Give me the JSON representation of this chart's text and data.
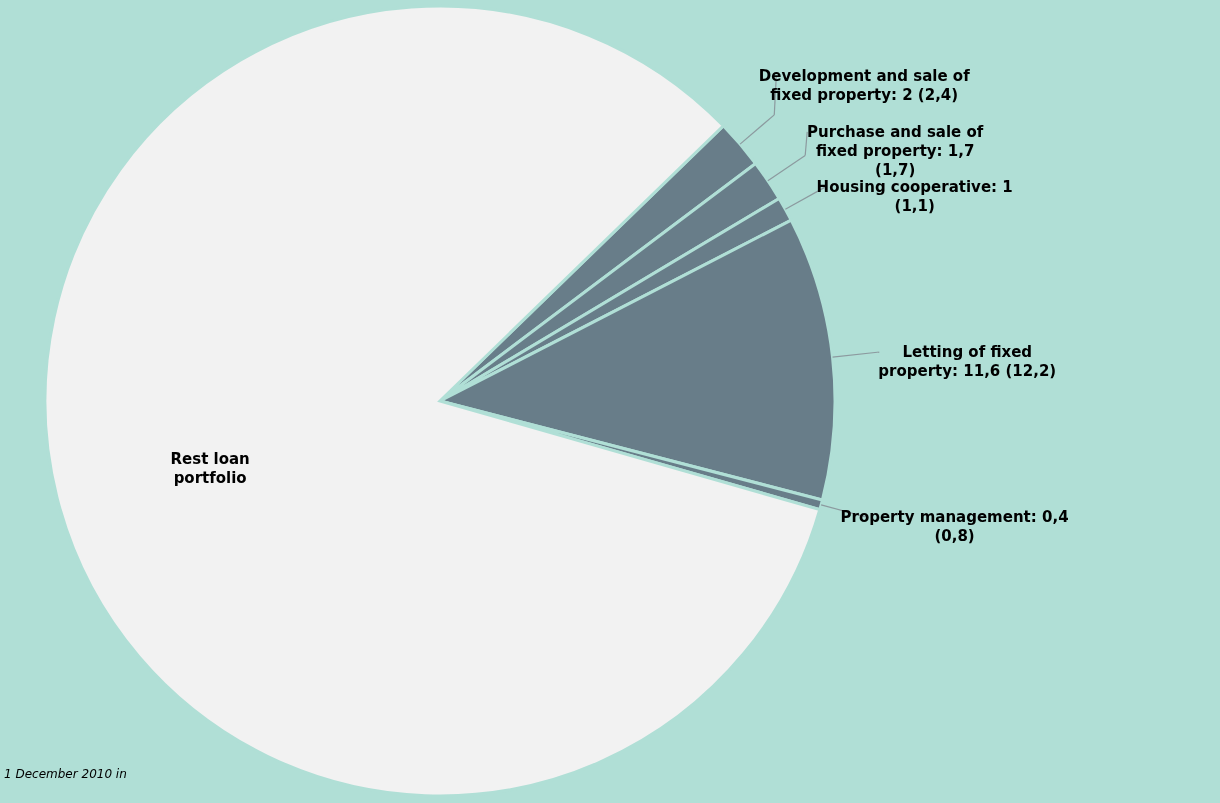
{
  "chart_data": {
    "type": "pie",
    "categories": [
      "Development and sale of fixed property: 2 (2,4)",
      "Purchase and sale of fixed property: 1,7 (1,7)",
      "Housing cooperative: 1 (1,1)",
      "Letting of fixed property: 11,6 (12,2)",
      "Property management: 0,4 (0,8)",
      "Rest loan portfolio"
    ],
    "values": [
      2,
      1.7,
      1,
      11.6,
      0.4,
      83.3
    ],
    "colors": [
      "#687d89",
      "#687d89",
      "#687d89",
      "#687d89",
      "#687d89",
      "#f2f2f2"
    ],
    "annotations": [
      "1 December 2010  in"
    ]
  }
}
